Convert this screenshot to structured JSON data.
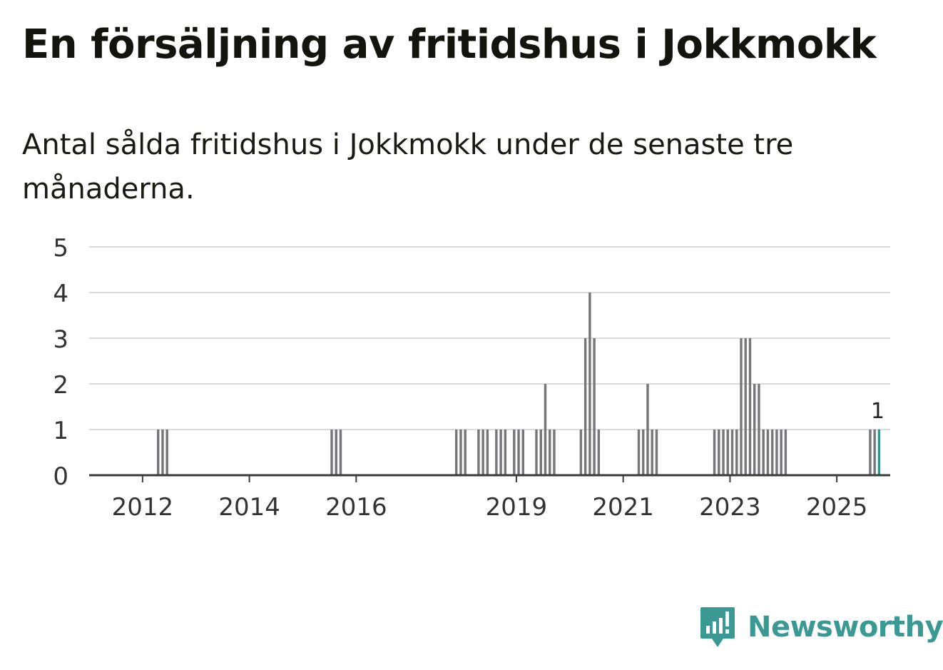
{
  "title": "En försäljning av fritidshus i Jokkmokk",
  "subtitle": "Antal sålda fritidshus i Jokkmokk under de senaste tre månaderna.",
  "brand": {
    "name": "Newsworthy",
    "icon": "newsworthy-logo-icon",
    "color": "#3a9a93"
  },
  "chart_data": {
    "type": "bar",
    "title": "",
    "xlabel": "",
    "ylabel": "",
    "ylim": [
      0,
      5
    ],
    "yticks": [
      0,
      1,
      2,
      3,
      4,
      5
    ],
    "xticks": [
      "2012",
      "2014",
      "2016",
      "2019",
      "2021",
      "2023",
      "2025"
    ],
    "grid": true,
    "bar_color": "#77767a",
    "highlight_color": "#17a096",
    "series": [
      {
        "x": [
          "2012-04",
          "2012-05",
          "2012-06",
          "2015-07",
          "2015-08",
          "2015-09",
          "2017-11",
          "2017-12",
          "2018-01",
          "2018-04",
          "2018-05",
          "2018-06",
          "2018-08",
          "2018-09",
          "2018-10",
          "2018-12",
          "2019-01",
          "2019-02",
          "2019-05",
          "2019-06",
          "2019-07",
          "2019-08",
          "2019-09",
          "2020-03",
          "2020-04",
          "2020-05",
          "2020-06",
          "2020-07",
          "2021-04",
          "2021-05",
          "2021-06",
          "2021-07",
          "2021-08",
          "2022-09",
          "2022-10",
          "2022-11",
          "2022-12",
          "2023-01",
          "2023-02",
          "2023-03",
          "2023-04",
          "2023-05",
          "2023-06",
          "2023-07",
          "2023-08",
          "2023-09",
          "2023-10",
          "2023-11",
          "2023-12",
          "2024-01",
          "2025-08",
          "2025-09",
          "2025-10"
        ],
        "values": [
          1,
          1,
          1,
          1,
          1,
          1,
          1,
          1,
          1,
          1,
          1,
          1,
          1,
          1,
          1,
          1,
          1,
          1,
          1,
          1,
          2,
          1,
          1,
          1,
          3,
          4,
          3,
          1,
          1,
          1,
          2,
          1,
          1,
          1,
          1,
          1,
          1,
          1,
          1,
          3,
          3,
          3,
          2,
          2,
          1,
          1,
          1,
          1,
          1,
          1,
          1,
          1,
          1
        ]
      }
    ],
    "highlight": {
      "x": "2025-10",
      "value": 1,
      "label": "1"
    }
  }
}
